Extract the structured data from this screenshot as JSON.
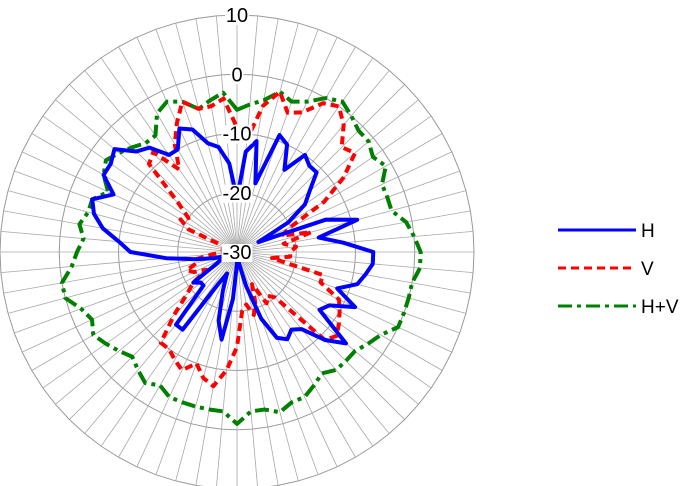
{
  "chart_data": {
    "type": "radar",
    "title": "",
    "radial_axis": {
      "min": -30,
      "max": 10,
      "step": 10,
      "tick_labels": [
        "-30",
        "-20",
        "-10",
        "0",
        "10"
      ]
    },
    "angular_divisions": 72,
    "grid": true,
    "legend": {
      "position": "right"
    },
    "series": [
      {
        "name": "H",
        "color": "#0000ff",
        "dash": "solid",
        "values": [
          -21,
          -13,
          -11,
          -18,
          -9,
          -10,
          -14,
          -10,
          -11,
          -11,
          -14,
          -16,
          -20,
          -26,
          -14,
          -9,
          -16,
          -12,
          -7,
          -7,
          -8,
          -9,
          -12,
          -8,
          -12,
          -13,
          -6,
          -9,
          -13,
          -14,
          -13,
          -14,
          -18,
          -24,
          -28,
          -30,
          -28,
          -22,
          -15,
          -18,
          -23,
          -26,
          -24,
          -14,
          -14,
          -22,
          -22,
          -21,
          -26,
          -27,
          -28,
          -26,
          -23,
          -18,
          -12,
          -10,
          -7,
          -5,
          -4,
          -7,
          -4,
          -4,
          -3,
          -6,
          -7,
          -10,
          -10,
          -7,
          -8,
          -11,
          -12,
          -15
        ]
      },
      {
        "name": "V",
        "color": "#ff0000",
        "dash": "dash",
        "values": [
          -9,
          -11,
          -5,
          -2,
          -5,
          -4,
          -1,
          0,
          -2,
          -5,
          -4,
          -8,
          -13,
          -20,
          -22,
          -17,
          -22,
          -20,
          -21,
          -21,
          -24,
          -15,
          -15,
          -11,
          -10,
          -9,
          -8,
          -9,
          -20,
          -21,
          -20,
          -24,
          -21,
          -19,
          -21,
          -20,
          -14,
          -10,
          -7,
          -8,
          -10,
          -8,
          -9,
          -10,
          -10,
          -15,
          -19,
          -21,
          -24,
          -22,
          -21,
          -23,
          -23,
          -26,
          -28,
          -27,
          -27,
          -29,
          -29,
          -21,
          -19,
          -20,
          -17,
          -9,
          -8,
          -13,
          -9,
          -6,
          -3,
          -5,
          -5,
          -4
        ]
      },
      {
        "name": "H+V",
        "color": "#008000",
        "dash": "dashdot",
        "values": [
          -6,
          -5,
          -4,
          -2,
          -3,
          -2,
          0,
          1,
          0,
          -1,
          -1,
          -2,
          -1,
          -3,
          -3,
          -3,
          -1,
          0,
          1,
          1,
          0,
          0,
          0,
          0,
          -2,
          -3,
          -4,
          -4,
          -4,
          -5,
          -4,
          -3,
          -3,
          -2,
          -3,
          -3,
          -1,
          -3,
          -3,
          -3,
          -3,
          -3,
          -4,
          -3,
          -4,
          -5,
          -4,
          -3,
          -2,
          -3,
          -2,
          0,
          0,
          -2,
          -3,
          -4,
          -3,
          -4,
          -4,
          -6,
          -4,
          -3,
          -4,
          -5,
          -6,
          -6,
          -3,
          -2,
          -3,
          -5,
          -4,
          -3
        ]
      }
    ]
  }
}
